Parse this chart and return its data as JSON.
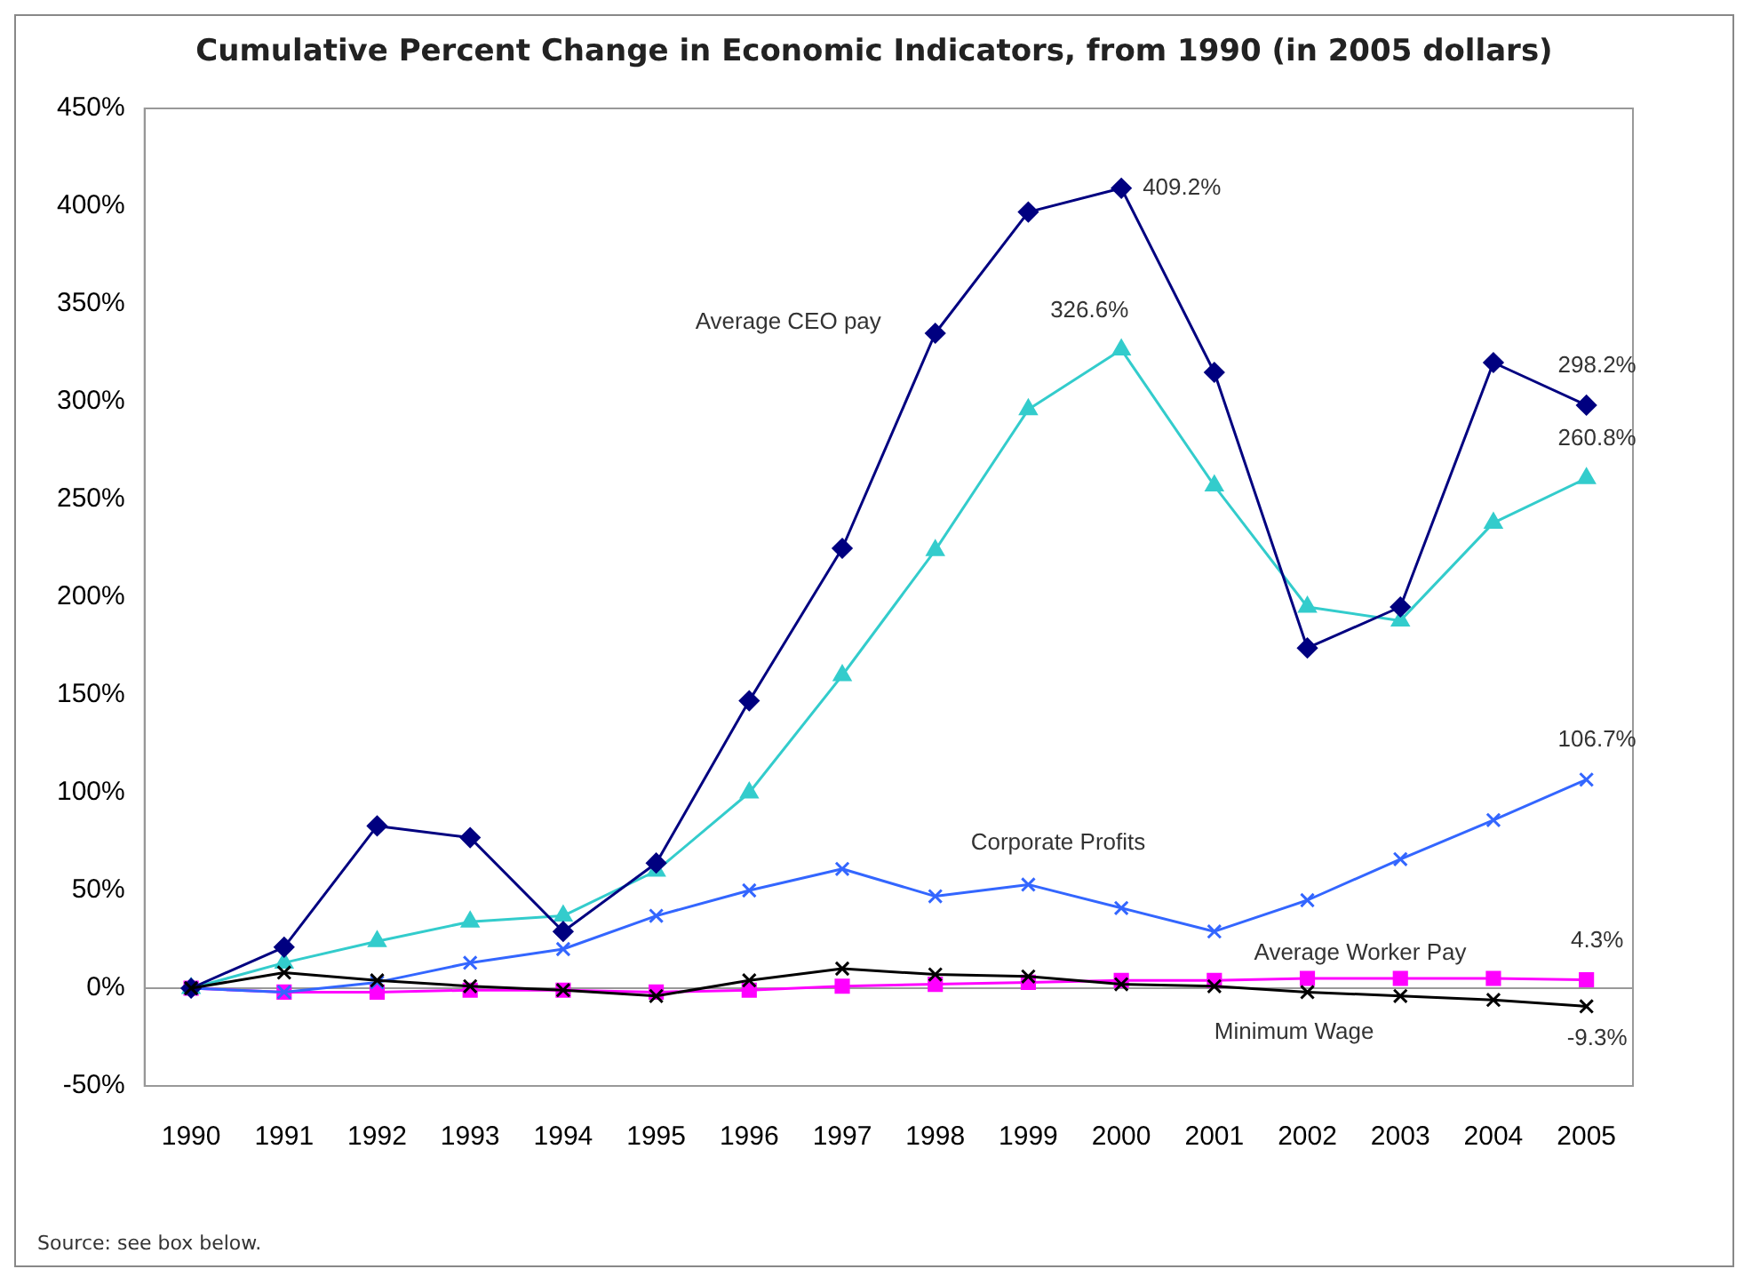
{
  "chart_data": {
    "type": "line",
    "title": "Cumulative Percent Change in Economic Indicators, from 1990 (in 2005 dollars)",
    "categories": [
      "1990",
      "1991",
      "1992",
      "1993",
      "1994",
      "1995",
      "1996",
      "1997",
      "1998",
      "1999",
      "2000",
      "2001",
      "2002",
      "2003",
      "2004",
      "2005"
    ],
    "series": [
      {
        "name": "Average CEO pay",
        "color": "#000080",
        "marker": "diamond",
        "values": [
          0,
          21,
          83,
          77,
          29,
          64,
          147,
          225,
          335,
          397,
          409.2,
          315,
          174,
          195,
          320,
          298.2
        ],
        "value_labels": [
          null,
          null,
          null,
          null,
          null,
          null,
          null,
          null,
          null,
          null,
          "409.2%",
          null,
          null,
          null,
          null,
          "298.2%"
        ]
      },
      {
        "color": "#33cccc",
        "marker": "triangle",
        "values": [
          0,
          13,
          24,
          34,
          37,
          60,
          100,
          160,
          224,
          296,
          326.6,
          257,
          195,
          188,
          238,
          260.8
        ],
        "value_labels": [
          null,
          null,
          null,
          null,
          null,
          null,
          null,
          null,
          null,
          null,
          "326.6%",
          null,
          null,
          null,
          null,
          "260.8%"
        ]
      },
      {
        "name": "Corporate Profits",
        "color": "#3366ff",
        "marker": "cross",
        "values": [
          0,
          -2,
          3,
          13,
          20,
          37,
          50,
          61,
          47,
          53,
          41,
          29,
          45,
          66,
          86,
          106.7
        ],
        "value_labels": [
          null,
          null,
          null,
          null,
          null,
          null,
          null,
          null,
          null,
          null,
          null,
          null,
          null,
          null,
          null,
          "106.7%"
        ]
      },
      {
        "name": "Average Worker Pay",
        "color": "#ff00ff",
        "marker": "square",
        "values": [
          0,
          -2,
          -2,
          -1,
          -1,
          -2,
          -1,
          1,
          2,
          3,
          4,
          4,
          5,
          5,
          5,
          4.3
        ],
        "value_labels": [
          null,
          null,
          null,
          null,
          null,
          null,
          null,
          null,
          null,
          null,
          null,
          null,
          null,
          null,
          null,
          "4.3%"
        ]
      },
      {
        "name": "Minimum Wage",
        "color": "#000000",
        "marker": "cross",
        "values": [
          0,
          8,
          4,
          1,
          -1,
          -4,
          4,
          10,
          7,
          6,
          2,
          1,
          -2,
          -4,
          -6,
          -9.3
        ],
        "value_labels": [
          null,
          null,
          null,
          null,
          null,
          null,
          null,
          null,
          null,
          null,
          null,
          null,
          null,
          null,
          null,
          "-9.3%"
        ]
      }
    ],
    "ylim": [
      -50,
      450
    ],
    "yticks": [
      {
        "value": -50,
        "label": "-50%"
      },
      {
        "value": 0,
        "label": "0%"
      },
      {
        "value": 50,
        "label": "50%"
      },
      {
        "value": 100,
        "label": "100%"
      },
      {
        "value": 150,
        "label": "150%"
      },
      {
        "value": 200,
        "label": "200%"
      },
      {
        "value": 250,
        "label": "250%"
      },
      {
        "value": 300,
        "label": "300%"
      },
      {
        "value": 350,
        "label": "350%"
      },
      {
        "value": 400,
        "label": "400%"
      },
      {
        "value": 450,
        "label": "450%"
      }
    ],
    "grid": false,
    "legend": false,
    "ref_lines": [
      {
        "axis": "y",
        "value": 0,
        "color": "#999999"
      }
    ],
    "annotations": [
      "Source: see box below."
    ]
  }
}
